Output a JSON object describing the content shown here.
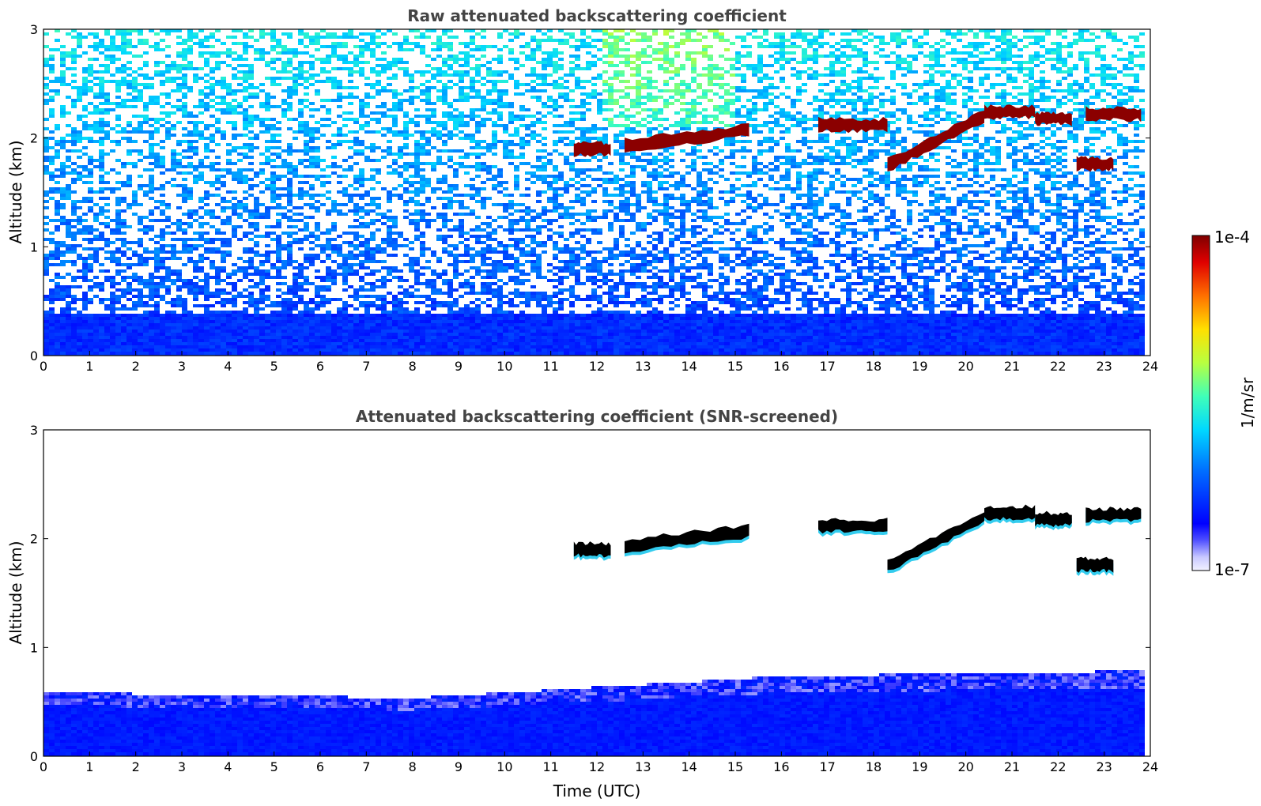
{
  "chart_data": [
    {
      "type": "heatmap",
      "title": "Raw attenuated backscattering coefficient",
      "xlabel": "",
      "ylabel": "Altitude (km)",
      "xlim": [
        0,
        24
      ],
      "ylim": [
        0,
        3
      ],
      "x_ticks": [
        "0",
        "1",
        "2",
        "3",
        "4",
        "5",
        "6",
        "7",
        "8",
        "9",
        "10",
        "11",
        "12",
        "13",
        "14",
        "15",
        "16",
        "17",
        "18",
        "19",
        "20",
        "21",
        "22",
        "23",
        "24"
      ],
      "y_ticks": [
        "0",
        "1",
        "2",
        "3"
      ],
      "field": "noisy",
      "layers": [
        {
          "kind": "boundary_layer",
          "top_km": 0.4
        },
        {
          "kind": "cloud",
          "x": [
            11.5,
            12.3
          ],
          "y": 1.9
        },
        {
          "kind": "cloud",
          "x": [
            12.6,
            15.3
          ],
          "y": [
            1.93,
            2.07
          ]
        },
        {
          "kind": "cloud",
          "x": [
            16.8,
            18.3
          ],
          "y": 2.12
        },
        {
          "kind": "cloud",
          "x": [
            18.3,
            20.4
          ],
          "y": [
            1.75,
            2.2
          ]
        },
        {
          "kind": "cloud",
          "x": [
            20.4,
            21.5
          ],
          "y": 2.24
        },
        {
          "kind": "cloud",
          "x": [
            21.5,
            22.3
          ],
          "y": 2.18
        },
        {
          "kind": "cloud",
          "x": [
            22.6,
            23.8
          ],
          "y": 2.22
        },
        {
          "kind": "cloud",
          "x": [
            22.4,
            23.2
          ],
          "y": 1.76
        }
      ]
    },
    {
      "type": "heatmap",
      "title": "Attenuated backscattering coefficient (SNR-screened)",
      "xlabel": "Time (UTC)",
      "ylabel": "Altitude (km)",
      "xlim": [
        0,
        24
      ],
      "ylim": [
        0,
        3
      ],
      "x_ticks": [
        "0",
        "1",
        "2",
        "3",
        "4",
        "5",
        "6",
        "7",
        "8",
        "9",
        "10",
        "11",
        "12",
        "13",
        "14",
        "15",
        "16",
        "17",
        "18",
        "19",
        "20",
        "21",
        "22",
        "23",
        "24"
      ],
      "y_ticks": [
        "0",
        "1",
        "2",
        "3"
      ],
      "field": "screened",
      "layers": [
        {
          "kind": "boundary_layer",
          "top_km": [
            0.6,
            0.55,
            0.75,
            0.8
          ]
        },
        {
          "kind": "cloud",
          "x": [
            11.5,
            12.3
          ],
          "y": 1.9
        },
        {
          "kind": "cloud",
          "x": [
            12.6,
            15.3
          ],
          "y": [
            1.93,
            2.07
          ]
        },
        {
          "kind": "cloud",
          "x": [
            16.8,
            18.3
          ],
          "y": 2.12
        },
        {
          "kind": "cloud",
          "x": [
            18.3,
            20.4
          ],
          "y": [
            1.75,
            2.2
          ]
        },
        {
          "kind": "cloud",
          "x": [
            20.4,
            21.5
          ],
          "y": 2.24
        },
        {
          "kind": "cloud",
          "x": [
            21.5,
            22.3
          ],
          "y": 2.18
        },
        {
          "kind": "cloud",
          "x": [
            22.6,
            23.8
          ],
          "y": 2.22
        },
        {
          "kind": "cloud",
          "x": [
            22.4,
            23.2
          ],
          "y": 1.76
        }
      ]
    }
  ],
  "colorbar": {
    "max_label": "1e-4",
    "min_label": "1e-7",
    "unit_label": "1/m/sr",
    "colormap": "jet"
  },
  "colors": {
    "title": "#444444",
    "cloud_core_raw": "#8b0000",
    "cloud_core_screened": "#000000",
    "boundary_layer": "#0018ff"
  }
}
